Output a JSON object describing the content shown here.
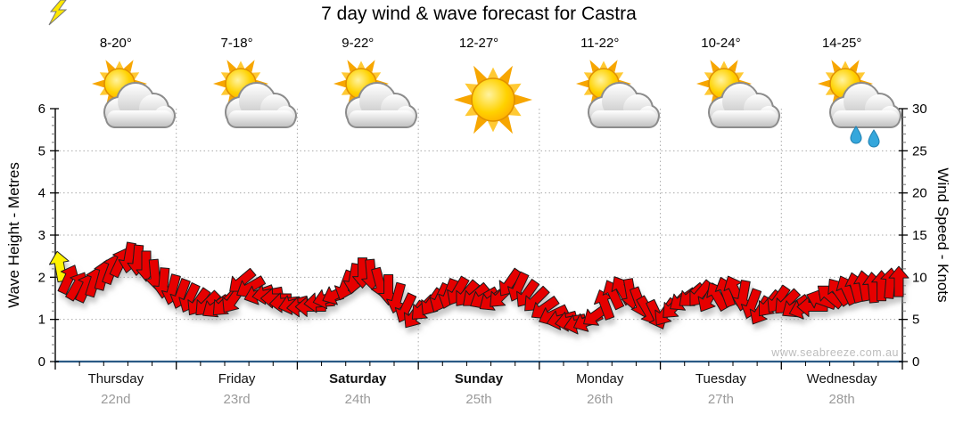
{
  "title": "7 day wind & wave forecast for Castra",
  "watermark": "www.seabreeze.com.au",
  "axes": {
    "left_title": "Wave Height - Metres",
    "right_title": "Wind Speed - Knots",
    "left_ticks": [
      0,
      1,
      2,
      3,
      4,
      5,
      6
    ],
    "right_ticks": [
      0,
      5,
      10,
      15,
      20,
      25,
      30
    ]
  },
  "days": [
    {
      "name": "Thursday",
      "date": "22nd",
      "temp": "8-20°",
      "icon": "partly-cloudy",
      "weekend": false
    },
    {
      "name": "Friday",
      "date": "23rd",
      "temp": "7-18°",
      "icon": "partly-cloudy",
      "weekend": false
    },
    {
      "name": "Saturday",
      "date": "24th",
      "temp": "9-22°",
      "icon": "partly-cloudy",
      "weekend": true
    },
    {
      "name": "Sunday",
      "date": "25th",
      "temp": "12-27°",
      "icon": "sunny",
      "weekend": true
    },
    {
      "name": "Monday",
      "date": "26th",
      "temp": "11-22°",
      "icon": "partly-cloudy",
      "weekend": false
    },
    {
      "name": "Tuesday",
      "date": "27th",
      "temp": "10-24°",
      "icon": "partly-cloudy",
      "weekend": false
    },
    {
      "name": "Wednesday",
      "date": "28th",
      "temp": "14-25°",
      "icon": "partly-cloudy-showers",
      "weekend": false
    }
  ],
  "chart_data": {
    "type": "wind-arrow-timeseries",
    "title": "7 day wind & wave forecast for Castra",
    "x_categories": [
      "Thursday 22nd",
      "Friday 23rd",
      "Saturday 24th",
      "Sunday 25th",
      "Monday 26th",
      "Tuesday 27th",
      "Wednesday 28th"
    ],
    "left_axis": {
      "label": "Wave Height - Metres",
      "range": [
        0,
        6
      ],
      "major_step": 1
    },
    "right_axis": {
      "label": "Wind Speed - Knots",
      "range": [
        0,
        30
      ],
      "major_step": 5
    },
    "grid": true,
    "legend": "none",
    "arrow_units": "knots, direction degrees (0=up)",
    "arrows": [
      [
        11.3,
        350
      ],
      [
        9.8,
        25
      ],
      [
        9.0,
        30
      ],
      [
        8.8,
        25
      ],
      [
        9.5,
        18
      ],
      [
        10.3,
        15
      ],
      [
        11.0,
        20
      ],
      [
        11.8,
        25
      ],
      [
        12.3,
        190
      ],
      [
        12.0,
        185
      ],
      [
        11.3,
        180
      ],
      [
        10.3,
        175
      ],
      [
        9.3,
        185
      ],
      [
        8.5,
        195
      ],
      [
        8.0,
        200
      ],
      [
        7.5,
        205
      ],
      [
        7.0,
        215
      ],
      [
        6.8,
        225
      ],
      [
        6.5,
        235
      ],
      [
        6.8,
        225
      ],
      [
        7.3,
        215
      ],
      [
        9.5,
        230
      ],
      [
        8.8,
        240
      ],
      [
        8.0,
        250
      ],
      [
        8.0,
        260
      ],
      [
        7.5,
        270
      ],
      [
        7.0,
        265
      ],
      [
        6.8,
        255
      ],
      [
        6.5,
        265
      ],
      [
        6.5,
        270
      ],
      [
        7.0,
        265
      ],
      [
        7.5,
        255
      ],
      [
        8.0,
        245
      ],
      [
        9.0,
        200
      ],
      [
        9.8,
        190
      ],
      [
        10.5,
        180
      ],
      [
        10.3,
        175
      ],
      [
        9.3,
        165
      ],
      [
        8.5,
        180
      ],
      [
        7.5,
        195
      ],
      [
        6.3,
        205
      ],
      [
        5.5,
        215
      ],
      [
        6.3,
        225
      ],
      [
        7.0,
        215
      ],
      [
        7.5,
        205
      ],
      [
        8.0,
        200
      ],
      [
        8.3,
        210
      ],
      [
        8.0,
        220
      ],
      [
        7.8,
        230
      ],
      [
        7.5,
        240
      ],
      [
        7.3,
        235
      ],
      [
        7.8,
        225
      ],
      [
        9.3,
        215
      ],
      [
        8.8,
        205
      ],
      [
        8.0,
        215
      ],
      [
        7.3,
        225
      ],
      [
        6.3,
        235
      ],
      [
        5.5,
        245
      ],
      [
        5.0,
        255
      ],
      [
        4.8,
        260
      ],
      [
        4.5,
        255
      ],
      [
        4.8,
        245
      ],
      [
        5.5,
        235
      ],
      [
        6.8,
        340
      ],
      [
        8.0,
        335
      ],
      [
        8.5,
        330
      ],
      [
        8.0,
        170
      ],
      [
        7.0,
        160
      ],
      [
        6.0,
        150
      ],
      [
        5.5,
        155
      ],
      [
        5.8,
        215
      ],
      [
        6.5,
        225
      ],
      [
        7.3,
        235
      ],
      [
        7.8,
        230
      ],
      [
        8.0,
        220
      ],
      [
        7.5,
        210
      ],
      [
        7.8,
        330
      ],
      [
        8.3,
        340
      ],
      [
        8.5,
        335
      ],
      [
        7.8,
        190
      ],
      [
        6.8,
        200
      ],
      [
        6.0,
        210
      ],
      [
        6.8,
        220
      ],
      [
        7.3,
        215
      ],
      [
        7.0,
        225
      ],
      [
        6.5,
        235
      ],
      [
        6.3,
        250
      ],
      [
        6.5,
        270
      ],
      [
        7.3,
        290
      ],
      [
        7.8,
        310
      ],
      [
        8.3,
        325
      ],
      [
        8.5,
        335
      ],
      [
        8.8,
        345
      ],
      [
        9.0,
        350
      ],
      [
        8.8,
        355
      ],
      [
        9.0,
        0
      ],
      [
        9.3,
        5
      ],
      [
        9.5,
        0
      ]
    ],
    "colors": {
      "arrow": "#e60000",
      "arrow_outline": "#1a1a1a",
      "first_arrow": "#fff200",
      "grid": "#aaaaaa",
      "bottom_axis": "#2a5a85",
      "axis": "#000000",
      "date_text": "#9a9a9a",
      "watermark": "#bcbcbc"
    }
  }
}
